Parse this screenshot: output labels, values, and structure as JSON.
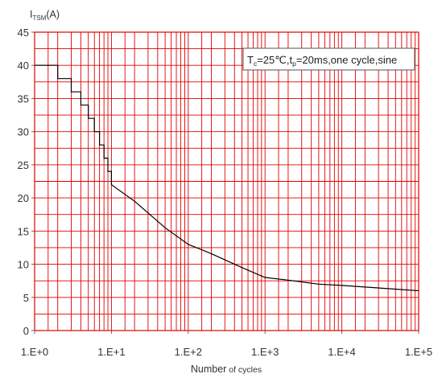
{
  "chart_data": {
    "type": "line",
    "x_scale": "log",
    "grid": true,
    "grid_color": "#e00000",
    "line_color": "#000000",
    "ylabel": {
      "main": "I",
      "sub": "TSM",
      "unit": "(A)"
    },
    "xlabel": {
      "main": "Number",
      "rest": " of cycles"
    },
    "annotation": {
      "T": "T",
      "T_sub": "c",
      "mid": "=25℃,t",
      "t_sub": "p",
      "rest": "=20ms,one cycle,sine"
    },
    "xlim": [
      1,
      100000
    ],
    "ylim": [
      0,
      45
    ],
    "y_ticks": [
      0,
      5,
      10,
      15,
      20,
      25,
      30,
      35,
      40,
      45
    ],
    "x_tick_values": [
      1,
      10,
      100,
      1000,
      10000,
      100000
    ],
    "x_tick_labels": [
      "1.E+0",
      "1.E+1",
      "1.E+2",
      "1.E+3",
      "1.E+4",
      "1.E+5"
    ],
    "series": [
      {
        "steps": [
          [
            1,
            40
          ],
          [
            2,
            40
          ],
          [
            2,
            38
          ],
          [
            3,
            38
          ],
          [
            3,
            36
          ],
          [
            4,
            36
          ],
          [
            4,
            34
          ],
          [
            5,
            34
          ],
          [
            5,
            32
          ],
          [
            6,
            32
          ],
          [
            6,
            30
          ],
          [
            7,
            30
          ],
          [
            7,
            28
          ],
          [
            8,
            28
          ],
          [
            8,
            26
          ],
          [
            9,
            26
          ],
          [
            9,
            24
          ],
          [
            10,
            24
          ],
          [
            10,
            22
          ]
        ],
        "x": [
          10,
          20,
          50,
          100,
          200,
          500,
          1000,
          2000,
          5000,
          10000,
          100000
        ],
        "y": [
          22,
          19.5,
          15.5,
          13,
          11.6,
          9.5,
          8,
          7.6,
          7,
          6.8,
          6
        ]
      }
    ]
  }
}
